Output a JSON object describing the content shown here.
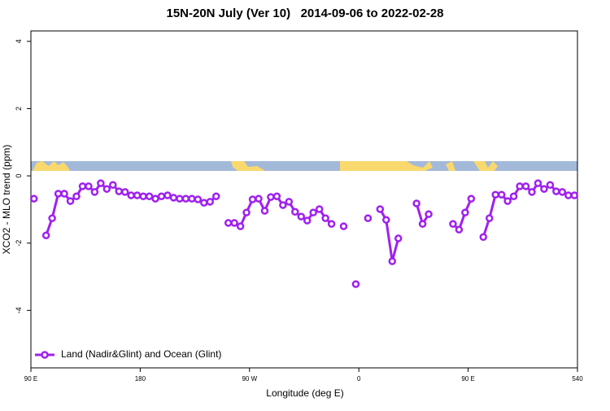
{
  "chart_data": {
    "type": "line",
    "title": "15N-20N July (Ver 10)   2014-09-06 to 2022-02-28",
    "x_label": "Longitude (deg E)",
    "y_label": "XCO2 - MLO trend (ppm)",
    "x": [
      92.5,
      97.5,
      102.5,
      107.5,
      112.5,
      117.5,
      122.5,
      127.5,
      132.5,
      137.5,
      142.5,
      147.5,
      152.5,
      157.5,
      162.5,
      167.5,
      172.5,
      177.5,
      182.5,
      187.5,
      192.5,
      197.5,
      202.5,
      207.5,
      212.5,
      217.5,
      222.5,
      227.5,
      232.5,
      237.5,
      242.5,
      247.5,
      252.5,
      257.5,
      262.5,
      267.5,
      272.5,
      277.5,
      282.5,
      287.5,
      292.5,
      297.5,
      302.5,
      307.5,
      312.5,
      317.5,
      322.5,
      327.5,
      332.5,
      337.5,
      342.5,
      347.5,
      352.5,
      357.5,
      362.5,
      367.5,
      372.5,
      377.5,
      382.5,
      387.5,
      392.5,
      397.5,
      402.5,
      407.5,
      412.5,
      417.5,
      422.5,
      427.5,
      432.5,
      437.5,
      442.5,
      447.5,
      452.5,
      457.5,
      462.5,
      467.5,
      472.5,
      477.5,
      482.5,
      487.5,
      492.5,
      497.5,
      502.5,
      507.5,
      512.5,
      517.5,
      522.5,
      527.5,
      532.5,
      537.5
    ],
    "series": [
      {
        "name": "Land (Nadir&Glint) and Ocean (Glint)",
        "color": "#a020f0",
        "values": [
          -0.68,
          null,
          -1.77,
          -1.26,
          -0.53,
          -0.53,
          -0.75,
          -0.61,
          -0.31,
          -0.31,
          -0.48,
          -0.22,
          -0.39,
          -0.27,
          -0.46,
          -0.48,
          -0.58,
          -0.58,
          -0.61,
          -0.61,
          -0.68,
          -0.61,
          -0.58,
          -0.65,
          -0.68,
          -0.68,
          -0.68,
          -0.7,
          -0.8,
          -0.77,
          -0.61,
          null,
          -1.4,
          -1.4,
          -1.5,
          -1.09,
          -0.7,
          -0.68,
          -1.04,
          -0.63,
          -0.61,
          -0.87,
          -0.77,
          -1.07,
          -1.21,
          -1.33,
          -1.09,
          -0.99,
          -1.26,
          -1.43,
          null,
          -1.5,
          null,
          -3.22,
          null,
          -1.26,
          null,
          -0.99,
          -1.31,
          -2.54,
          -1.86,
          null,
          null,
          -0.82,
          -1.43,
          -1.14,
          null,
          null,
          null,
          -1.43,
          -1.6,
          -1.09,
          -0.68,
          null,
          -1.82,
          -1.26,
          -0.56,
          -0.56,
          -0.75,
          -0.61,
          -0.31,
          -0.31,
          -0.48,
          -0.22,
          -0.39,
          -0.27,
          -0.46,
          -0.48,
          -0.58,
          -0.58
        ]
      }
    ],
    "xlim": [
      90,
      540
    ],
    "xticks": [
      {
        "value": 90,
        "label": "90 E"
      },
      180,
      {
        "value": 270,
        "label": "90 W"
      },
      {
        "value": 360,
        "label": "0"
      },
      {
        "value": 450,
        "label": "90 E"
      },
      540
    ],
    "ylim": [
      -5.71,
      4.31
    ],
    "yticks": [
      -4,
      -2,
      0,
      2,
      4
    ],
    "legend": "bottom-left",
    "grid": false
  }
}
